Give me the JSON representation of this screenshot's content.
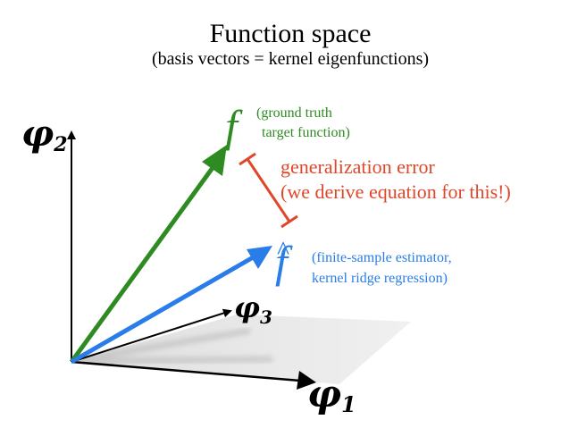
{
  "title": "Function space",
  "subtitle": "(basis vectors = kernel eigenfunctions)",
  "axes": {
    "phi2": {
      "symbol": "φ",
      "subscript": "2"
    },
    "phi3": {
      "symbol": "φ",
      "subscript": "3"
    },
    "phi1": {
      "symbol": "φ",
      "subscript": "1"
    }
  },
  "vectors": {
    "f": {
      "symbol": "f",
      "note_line1": "(ground truth",
      "note_line2": "target function)",
      "color": "#2e8b22"
    },
    "fhat": {
      "symbol": "f",
      "hat": "^",
      "note_line1": "(finite-sample estimator,",
      "note_line2": "kernel ridge regression)",
      "color": "#2a7de8"
    }
  },
  "error": {
    "line1": "generalization error",
    "line2": "(we derive equation for this!)",
    "color": "#e0472a"
  }
}
